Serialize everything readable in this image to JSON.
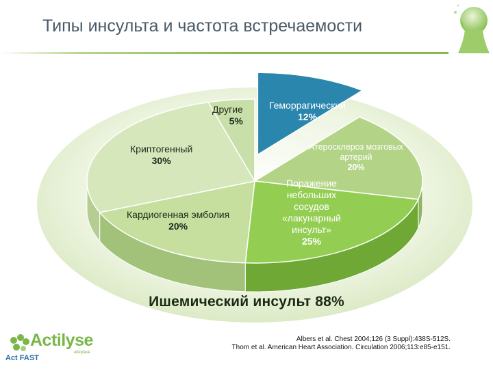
{
  "title": "Типы инсульта и частота встречаемости",
  "group_label": "Ишемический инсульт 88%",
  "references": {
    "line1": "Albers et al. Chest 2004;126 (3 Suppl):438S-512S.",
    "line2": "Thom et al. American Heart Association. Circulation 2006;113:e85-e151."
  },
  "logo": {
    "word": "Actilyse",
    "tag": "alteplase",
    "sub": "Act FAST"
  },
  "colors": {
    "hemorrhagic": "#2b86ad",
    "ischemic_light": "#d9e8c0",
    "ischemic_mid": "#bcd895",
    "ischemic_bright": "#8fcb4a",
    "backdrop": "#e4efd2"
  },
  "chart_data": {
    "type": "pie",
    "title": "Типы инсульта и частота встречаемости",
    "slices": [
      {
        "label": "Геморрагический",
        "value": 12,
        "value_label": "12%",
        "exploded": true
      },
      {
        "label": "Атеросклероз мозговых артерий",
        "value": 20,
        "value_label": "20%"
      },
      {
        "label": "Поражение небольших сосудов «лакунарный инсульт»",
        "value": 25,
        "value_label": "25%"
      },
      {
        "label": "Кардиогенная эмболия",
        "value": 20,
        "value_label": "20%"
      },
      {
        "label": "Криптогенный",
        "value": 30,
        "value_label": "30%"
      },
      {
        "label": "Другие",
        "value": 5,
        "value_label": "5%"
      }
    ],
    "group": {
      "label": "Ишемический инсульт",
      "value": 88,
      "value_label": "88%"
    }
  }
}
